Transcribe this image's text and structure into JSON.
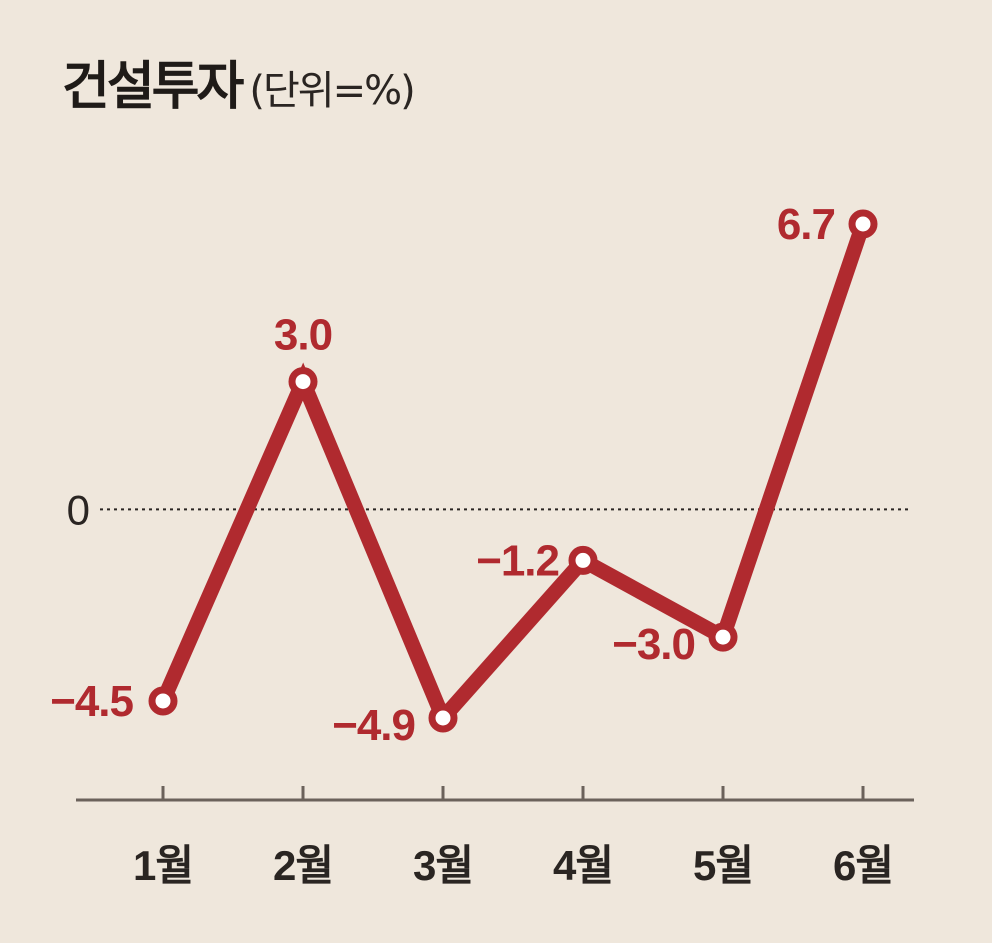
{
  "chart_data": {
    "type": "line",
    "title": "건설투자",
    "unit": "(단위=%)",
    "categories": [
      "1월",
      "2월",
      "3월",
      "4월",
      "5월",
      "6월"
    ],
    "series": [
      {
        "values": [
          -4.5,
          3.0,
          -4.9,
          -1.2,
          -3.0,
          6.7
        ],
        "labels": [
          "−4.5",
          "3.0",
          "−4.9",
          "−1.2",
          "−3.0",
          "6.7"
        ]
      }
    ],
    "reference_line": {
      "value": 0,
      "label": "0",
      "style": "dotted"
    },
    "ylim": [
      -6.5,
      7.5
    ],
    "grid": false,
    "legend": "none"
  },
  "colors": {
    "background": "#efe7dc",
    "line": "#b02a2f",
    "text": "#2a2522",
    "axis": "#6b625b"
  }
}
